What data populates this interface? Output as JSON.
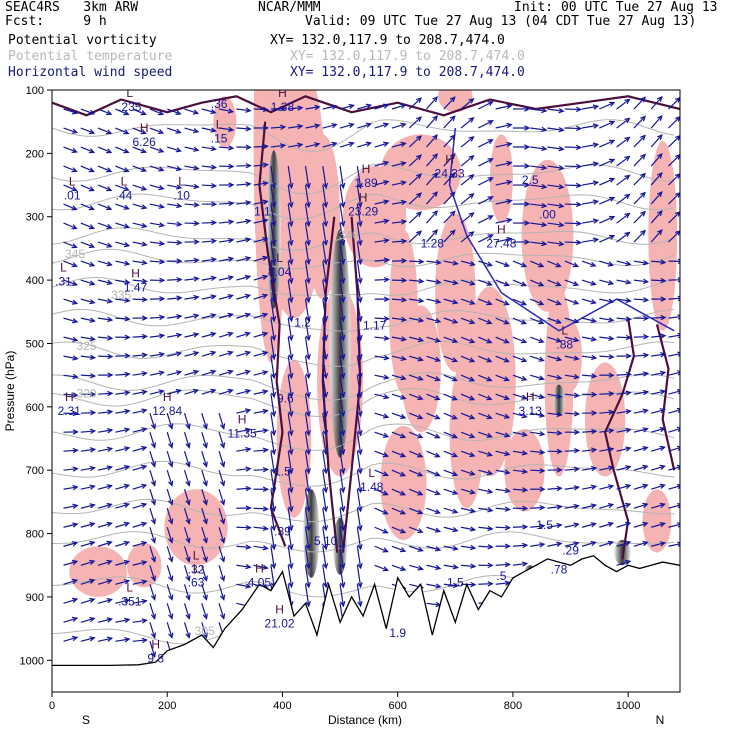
{
  "header": {
    "model": "SEAC4RS   3km ARW",
    "forecast": "Fcst:     9 h",
    "institution": "NCAR/MMM",
    "init": "Init: 00 UTC Tue 27 Aug 13",
    "valid": "Valid: 09 UTC Tue 27 Aug 13 (04 CDT Tue 27 Aug 13)",
    "fields": [
      {
        "name": "Potential vorticity",
        "xy": "XY= 132.0,117.9 to 208.7,474.0"
      },
      {
        "name": "Potential temperature",
        "xy": "XY= 132.0,117.9 to 208.7,474.0"
      },
      {
        "name": "Horizontal wind speed",
        "xy": "XY= 132.0,117.9 to 208.7,474.0"
      }
    ]
  },
  "colors": {
    "pv_fill": "#f6b3b3",
    "pv_contour": "#4a0f3c",
    "theta": "#b4b4b4",
    "wind": "#16169a",
    "terrain": "#000000",
    "shading_dark": "#3c3c3c"
  },
  "chart_data": {
    "type": "cross-section",
    "xlabel": "Distance (km)",
    "ylabel": "Pressure (hPa)",
    "xlim": [
      0,
      1090
    ],
    "ylim": [
      100,
      1050
    ],
    "xticks": [
      "0",
      "200",
      "400",
      "600",
      "800",
      "1000"
    ],
    "xtick_values": [
      0,
      200,
      400,
      600,
      800,
      1000
    ],
    "yticks": [
      "100",
      "200",
      "300",
      "400",
      "500",
      "600",
      "700",
      "800",
      "900",
      "1000"
    ],
    "ytick_values": [
      100,
      200,
      300,
      400,
      500,
      600,
      700,
      800,
      900,
      1000
    ],
    "endpoints": {
      "left": "S",
      "right": "N"
    },
    "terrain": {
      "x": [
        0,
        50,
        100,
        150,
        180,
        200,
        230,
        260,
        280,
        300,
        330,
        360,
        380,
        400,
        420,
        440,
        460,
        480,
        500,
        520,
        540,
        560,
        580,
        600,
        620,
        640,
        660,
        680,
        700,
        720,
        740,
        760,
        780,
        800,
        820,
        840,
        860,
        880,
        900,
        920,
        940,
        960,
        980,
        1000,
        1020,
        1040,
        1060,
        1090
      ],
      "p": [
        1008,
        1008,
        1008,
        1007,
        1003,
        985,
        975,
        960,
        980,
        950,
        920,
        880,
        890,
        860,
        930,
        910,
        960,
        880,
        940,
        900,
        930,
        880,
        950,
        870,
        900,
        880,
        960,
        890,
        940,
        880,
        920,
        890,
        900,
        870,
        860,
        850,
        840,
        845,
        850,
        840,
        835,
        850,
        860,
        850,
        855,
        850,
        845,
        850
      ]
    },
    "theta_contours": [
      {
        "label": "305",
        "x": 265,
        "p": 960
      },
      {
        "label": "320",
        "x": 60,
        "p": 585
      },
      {
        "label": "325",
        "x": 60,
        "p": 510
      },
      {
        "label": "335",
        "x": 120,
        "p": 430
      },
      {
        "label": "340",
        "x": 515,
        "p": 335
      },
      {
        "label": "345",
        "x": 40,
        "p": 365
      }
    ],
    "pv_labels": [
      {
        "label": "L",
        "value": ".01",
        "x": 35,
        "p": 270
      },
      {
        "label": "L",
        "value": ".44",
        "x": 125,
        "p": 270
      },
      {
        "label": "L",
        "value": ".10",
        "x": 225,
        "p": 270
      },
      {
        "label": "H",
        "value": "6.26",
        "x": 160,
        "p": 185
      },
      {
        "label": "L",
        "value": ".235",
        "x": 135,
        "p": 130
      },
      {
        "label": "L",
        "value": ".15",
        "x": 290,
        "p": 180
      },
      {
        "label": "",
        "value": ".36",
        "x": 290,
        "p": 125
      },
      {
        "label": "H",
        "value": "1.38",
        "x": 400,
        "p": 130
      },
      {
        "label": "L",
        "value": ".31",
        "x": 20,
        "p": 405
      },
      {
        "label": "H",
        "value": "1.47",
        "x": 145,
        "p": 415
      },
      {
        "label": "H",
        "value": "2.31",
        "x": 30,
        "p": 610
      },
      {
        "label": "H",
        "value": "12.84",
        "x": 200,
        "p": 610
      },
      {
        "label": "H",
        "value": "11.35",
        "x": 330,
        "p": 645
      },
      {
        "label": "L",
        "value": "8.04",
        "x": 395,
        "p": 390
      },
      {
        "label": "",
        "value": "9.6",
        "x": 405,
        "p": 590
      },
      {
        "label": "",
        "value": "1.5",
        "x": 400,
        "p": 705
      },
      {
        "label": "L",
        "value": ".32",
        "x": 250,
        "p": 860
      },
      {
        "label": "L",
        "value": ".63",
        "x": 250,
        "p": 880
      },
      {
        "label": "L",
        "value": ".351",
        "x": 135,
        "p": 910
      },
      {
        "label": "H",
        "value": "9.8",
        "x": 180,
        "p": 1000
      },
      {
        "label": "H",
        "value": "4.05",
        "x": 360,
        "p": 880
      },
      {
        "label": "H",
        "value": "21.02",
        "x": 395,
        "p": 945
      },
      {
        "label": "",
        "value": ".39",
        "x": 400,
        "p": 800
      },
      {
        "label": "",
        "value": "5.10",
        "x": 475,
        "p": 815
      },
      {
        "label": "",
        "value": "1.2",
        "x": 435,
        "p": 470
      },
      {
        "label": "",
        "value": "1.1",
        "x": 365,
        "p": 295
      },
      {
        "label": "H",
        "value": "1.89",
        "x": 545,
        "p": 250
      },
      {
        "label": "H",
        "value": "23.29",
        "x": 540,
        "p": 295
      },
      {
        "label": "",
        "value": "1.17",
        "x": 560,
        "p": 475
      },
      {
        "label": "L",
        "value": "1.48",
        "x": 555,
        "p": 730
      },
      {
        "label": "H",
        "value": "24.33",
        "x": 690,
        "p": 235
      },
      {
        "label": "",
        "value": "1.28",
        "x": 660,
        "p": 345
      },
      {
        "label": "H",
        "value": "27.48",
        "x": 780,
        "p": 345
      },
      {
        "label": "",
        "value": "2.5",
        "x": 830,
        "p": 245
      },
      {
        "label": "",
        "value": ".00",
        "x": 860,
        "p": 300
      },
      {
        "label": "H",
        "value": "3.13",
        "x": 830,
        "p": 610
      },
      {
        "label": "L",
        "value": ".88",
        "x": 890,
        "p": 505
      },
      {
        "label": "",
        "value": "1.5",
        "x": 855,
        "p": 790
      },
      {
        "label": "",
        "value": ".78",
        "x": 880,
        "p": 860
      },
      {
        "label": "",
        "value": ".29",
        "x": 900,
        "p": 830
      },
      {
        "label": "",
        "value": "1.5",
        "x": 700,
        "p": 880
      },
      {
        "label": "",
        "value": "1.9",
        "x": 600,
        "p": 960
      },
      {
        "label": "",
        "value": ".5",
        "x": 780,
        "p": 870
      }
    ]
  }
}
